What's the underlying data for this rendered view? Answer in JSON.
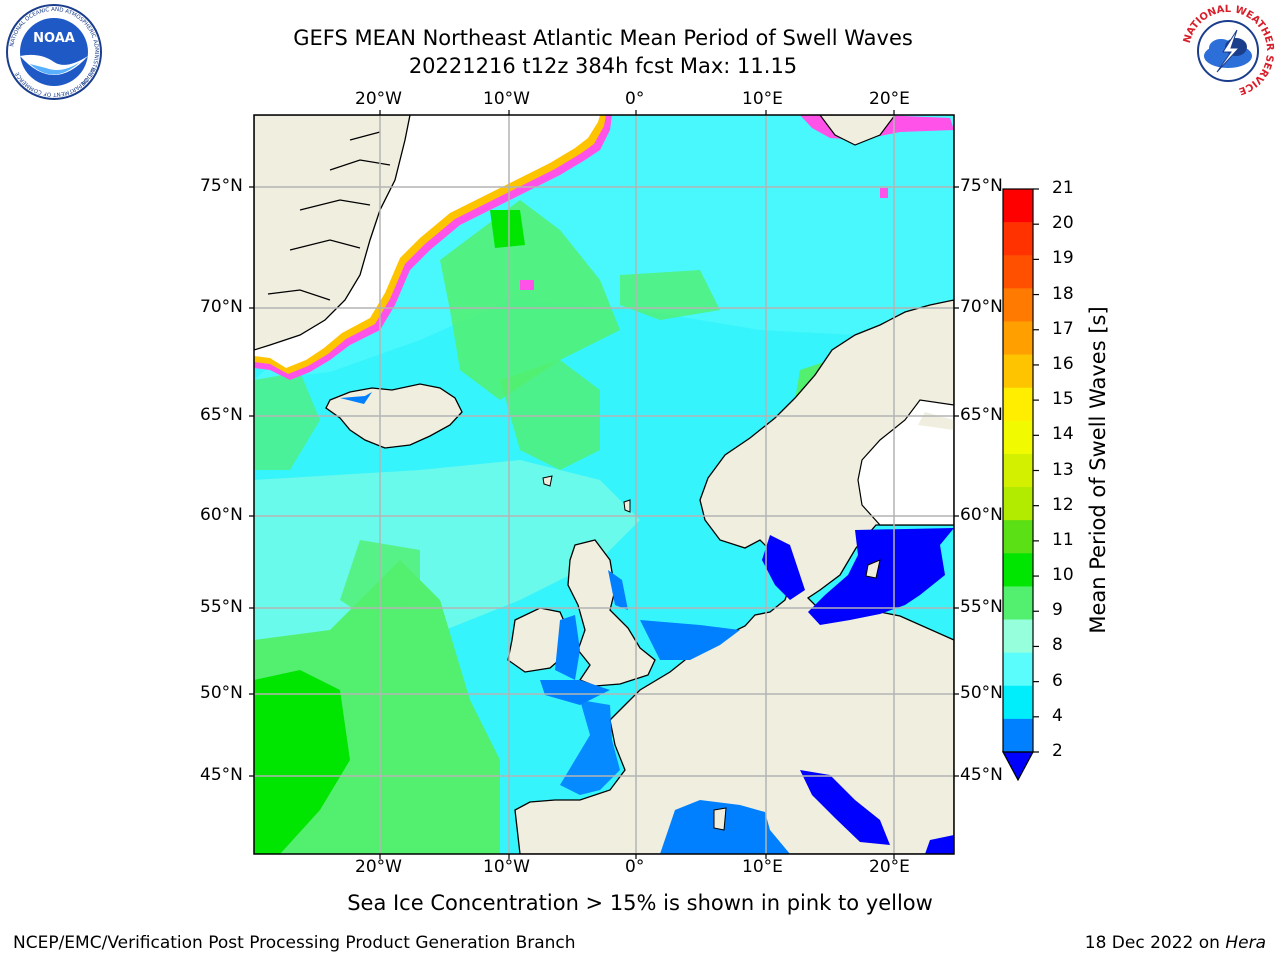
{
  "header": {
    "title": "GEFS MEAN Northeast Atlantic Mean Period of Swell Waves",
    "subtitle": "20221216 t12z 384h fcst   Max: 11.15"
  },
  "logos": {
    "left": {
      "name": "NOAA",
      "ring_text": "NATIONAL OCEANIC AND ATMOSPHERIC ADMINISTRATION",
      "bottom_text": "U.S. DEPARTMENT OF COMMERCE"
    },
    "right": {
      "ring_text": "NATIONAL WEATHER SERVICE"
    }
  },
  "map": {
    "lon_ticks": [
      "20°W",
      "10°W",
      "0°",
      "10°E",
      "20°E"
    ],
    "lat_ticks": [
      "75°N",
      "70°N",
      "65°N",
      "60°N",
      "55°N",
      "50°N",
      "45°N"
    ],
    "colors": {
      "land": "#efeedf",
      "grid": "#b4b4b4",
      "sea_default": "#36f4fc"
    }
  },
  "colorbar": {
    "label": "Mean Period of Swell Waves [s]",
    "ticks": [
      "21",
      "20",
      "19",
      "18",
      "17",
      "16",
      "15",
      "14",
      "13",
      "12",
      "11",
      "10",
      "9",
      "8",
      "6",
      "4",
      "2"
    ],
    "colors_top_to_bottom": [
      "#ff0000",
      "#ff3200",
      "#ff5000",
      "#ff7a00",
      "#ffa000",
      "#ffc400",
      "#ffee00",
      "#f2fa00",
      "#d2f000",
      "#b2ea00",
      "#5ae014",
      "#00e600",
      "#52f06e",
      "#96ffdc",
      "#5afcfc",
      "#00eefc",
      "#0080ff"
    ],
    "underflow_color": "#0000ff"
  },
  "footer": {
    "note": "Sea Ice Concentration > 15% is shown in pink to yellow",
    "credit": "NCEP/EMC/Verification Post Processing Product Generation Branch",
    "date_prefix": "18 Dec 2022 on ",
    "machine": "Hera"
  }
}
